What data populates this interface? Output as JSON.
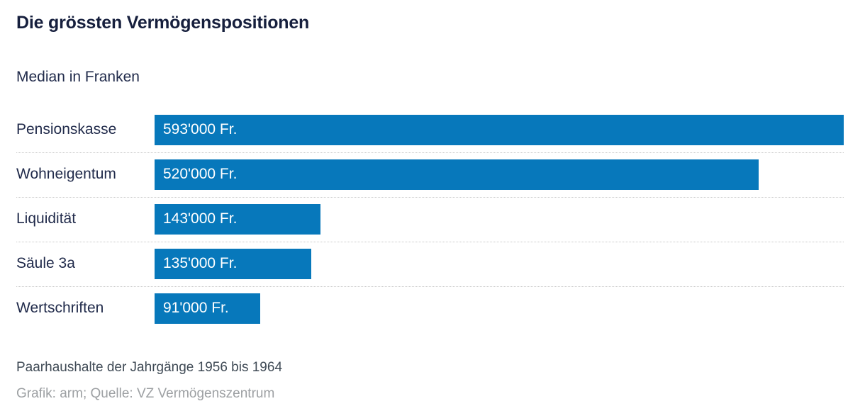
{
  "header": {
    "title": "Die grössten Vermögenspositionen",
    "subtitle": "Median in Franken"
  },
  "chart_data": {
    "type": "bar",
    "orientation": "horizontal",
    "title": "Die grössten Vermögenspositionen",
    "subtitle": "Median in Franken",
    "categories": [
      "Pensionskasse",
      "Wohneigentum",
      "Liquidität",
      "Säule 3a",
      "Wertschriften"
    ],
    "values": [
      593000,
      520000,
      143000,
      135000,
      91000
    ],
    "value_labels": [
      "593'000 Fr.",
      "520'000 Fr.",
      "143'000 Fr.",
      "135'000 Fr.",
      "91'000 Fr."
    ],
    "unit": "Fr.",
    "xlabel": "",
    "ylabel": "",
    "xlim": [
      0,
      593000
    ],
    "grid": false,
    "legend": false,
    "bar_color": "#0778bb",
    "value_label_position": "inside-left"
  },
  "footer": {
    "note": "Paarhaushalte der Jahrgänge 1956 bis 1964",
    "credit": "Grafik: arm; Quelle: VZ Vermögenszentrum"
  },
  "colors": {
    "background": "#ffffff",
    "bar": "#0778bb",
    "title_text": "#161f3d",
    "label_text": "#212b4b",
    "value_text": "#ffffff",
    "note_text": "#3f4a55",
    "credit_text": "#9da0a3",
    "separator": "#c9c9c9"
  }
}
